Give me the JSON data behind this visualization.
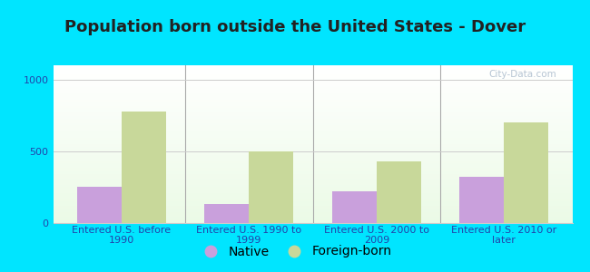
{
  "title": "Population born outside the United States - Dover",
  "categories": [
    "Entered U.S. before\n1990",
    "Entered U.S. 1990 to\n1999",
    "Entered U.S. 2000 to\n2009",
    "Entered U.S. 2010 or\nlater"
  ],
  "native_values": [
    250,
    130,
    220,
    320
  ],
  "foreign_values": [
    775,
    500,
    430,
    700
  ],
  "native_color": "#c9a0dc",
  "foreign_color": "#c8d89a",
  "background_outer": "#00e5ff",
  "ylim": [
    0,
    1100
  ],
  "yticks": [
    0,
    500,
    1000
  ],
  "bar_width": 0.35,
  "title_fontsize": 13,
  "tick_fontsize": 8,
  "legend_fontsize": 10,
  "watermark_text": "City-Data.com",
  "grid_color": "#cccccc",
  "title_color": "#222222",
  "tick_color": "#2244aa",
  "separator_color": "#aaaaaa"
}
